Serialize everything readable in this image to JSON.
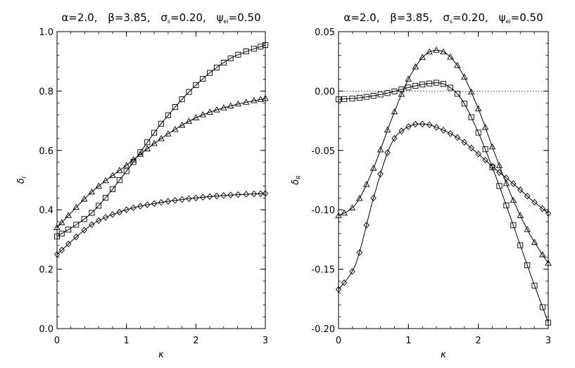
{
  "chart_data": [
    {
      "type": "line",
      "title": "α=2.0,  β=3.85,  σs=0.20,  ψei=0.50",
      "title_parts": {
        "alpha": "α=2.0,",
        "beta": "β=3.85,",
        "sigma": "σ",
        "sigma_sub": "s",
        "sigma_val": "=0.20,",
        "psi": "ψ",
        "psi_sub": "ei",
        "psi_val": "=0.50"
      },
      "xlabel": "κ",
      "ylabel": "δ",
      "ylabel_sub": "I",
      "xlim": [
        0,
        3
      ],
      "ylim": [
        0,
        1.0
      ],
      "xticks": [
        0,
        1,
        2,
        3
      ],
      "xtick_labels": [
        "0",
        "1",
        "2",
        "3"
      ],
      "yticks": [
        0,
        0.2,
        0.4,
        0.6,
        0.8,
        1.0
      ],
      "ytick_labels": [
        "0.0",
        "0.2",
        "0.4",
        "0.6",
        "0.8",
        "1.0"
      ],
      "grid": false,
      "series": [
        {
          "marker": "square",
          "x": [
            0,
            0.5,
            1.0,
            1.5,
            2.0,
            2.5,
            3.0
          ],
          "y": [
            0.31,
            0.39,
            0.53,
            0.69,
            0.82,
            0.91,
            0.955
          ]
        },
        {
          "marker": "triangle",
          "x": [
            0,
            0.5,
            1.0,
            1.5,
            2.0,
            2.5,
            3.0
          ],
          "y": [
            0.34,
            0.46,
            0.55,
            0.64,
            0.71,
            0.75,
            0.775
          ]
        },
        {
          "marker": "diamond",
          "x": [
            0,
            0.5,
            1.0,
            1.5,
            2.0,
            2.5,
            3.0
          ],
          "y": [
            0.25,
            0.35,
            0.4,
            0.425,
            0.44,
            0.45,
            0.455
          ]
        }
      ]
    },
    {
      "type": "line",
      "title": "α=2.0,  β=3.85,  σs=0.20,  ψei=0.50",
      "title_parts": {
        "alpha": "α=2.0,",
        "beta": "β=3.85,",
        "sigma": "σ",
        "sigma_sub": "s",
        "sigma_val": "=0.20,",
        "psi": "ψ",
        "psi_sub": "ei",
        "psi_val": "=0.50"
      },
      "xlabel": "κ",
      "ylabel": "δ",
      "ylabel_sub": "R",
      "xlim": [
        0,
        3
      ],
      "ylim": [
        -0.2,
        0.05
      ],
      "xticks": [
        0,
        1,
        2,
        3
      ],
      "xtick_labels": [
        "0",
        "1",
        "2",
        "3"
      ],
      "yticks": [
        -0.2,
        -0.15,
        -0.1,
        -0.05,
        0.0,
        0.05
      ],
      "ytick_labels": [
        "-0.20",
        "-0.15",
        "-0.10",
        "-0.05",
        "0.00",
        "0.05"
      ],
      "grid": false,
      "reference_line_y": 0.0,
      "series": [
        {
          "marker": "square",
          "x": [
            0,
            0.25,
            0.5,
            0.75,
            1.0,
            1.25,
            1.5,
            1.75,
            2.0,
            2.25,
            2.5,
            2.75,
            3.0
          ],
          "y": [
            -0.007,
            -0.006,
            -0.004,
            -0.001,
            0.003,
            0.006,
            0.006,
            -0.006,
            -0.035,
            -0.072,
            -0.113,
            -0.155,
            -0.195
          ]
        },
        {
          "marker": "triangle",
          "x": [
            0,
            0.25,
            0.5,
            0.75,
            1.0,
            1.25,
            1.5,
            1.75,
            2.0,
            2.25,
            2.5,
            2.75,
            3.0
          ],
          "y": [
            -0.105,
            -0.095,
            -0.065,
            -0.025,
            0.01,
            0.031,
            0.033,
            0.017,
            -0.015,
            -0.055,
            -0.092,
            -0.122,
            -0.145
          ]
        },
        {
          "marker": "diamond",
          "x": [
            0,
            0.25,
            0.5,
            0.75,
            1.0,
            1.25,
            1.5,
            1.75,
            2.0,
            2.25,
            2.5,
            2.75,
            3.0
          ],
          "y": [
            -0.167,
            -0.145,
            -0.09,
            -0.045,
            -0.03,
            -0.028,
            -0.033,
            -0.041,
            -0.053,
            -0.066,
            -0.078,
            -0.091,
            -0.103
          ]
        }
      ]
    }
  ]
}
